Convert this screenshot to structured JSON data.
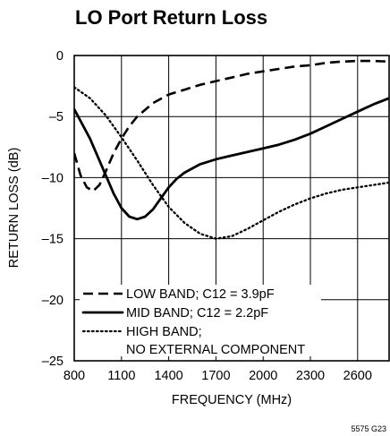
{
  "chart_data": {
    "type": "line",
    "title": "LO Port Return Loss",
    "xlabel": "FREQUENCY (MHz)",
    "ylabel": "RETURN LOSS (dB)",
    "xlim": [
      800,
      2800
    ],
    "ylim": [
      -25,
      0
    ],
    "x_ticks": [
      800,
      1100,
      1400,
      1700,
      2000,
      2300,
      2600
    ],
    "x_tick_labels": [
      "800",
      "1100",
      "1400",
      "1700",
      "2000",
      "2300",
      "2600"
    ],
    "y_ticks": [
      0,
      -5,
      -10,
      -15,
      -20,
      -25
    ],
    "y_tick_labels": [
      "0",
      "–5",
      "–10",
      "–15",
      "–20",
      "–25"
    ],
    "grid": true,
    "legend_position": "bottom-left",
    "series": [
      {
        "name": "LOW BAND; C12 = 3.9pF",
        "style": "dashed",
        "points": [
          [
            800,
            -8.0
          ],
          [
            840,
            -9.8
          ],
          [
            880,
            -10.8
          ],
          [
            920,
            -11.1
          ],
          [
            960,
            -10.6
          ],
          [
            1000,
            -9.5
          ],
          [
            1050,
            -8.0
          ],
          [
            1100,
            -6.8
          ],
          [
            1150,
            -5.8
          ],
          [
            1200,
            -5.0
          ],
          [
            1300,
            -3.9
          ],
          [
            1400,
            -3.2
          ],
          [
            1500,
            -2.8
          ],
          [
            1600,
            -2.4
          ],
          [
            1700,
            -2.1
          ],
          [
            1800,
            -1.8
          ],
          [
            1900,
            -1.5
          ],
          [
            2000,
            -1.3
          ],
          [
            2100,
            -1.1
          ],
          [
            2200,
            -0.9
          ],
          [
            2300,
            -0.8
          ],
          [
            2400,
            -0.6
          ],
          [
            2500,
            -0.5
          ],
          [
            2600,
            -0.45
          ],
          [
            2700,
            -0.45
          ],
          [
            2800,
            -0.5
          ]
        ]
      },
      {
        "name": "MID BAND; C12 = 2.2pF",
        "style": "solid",
        "points": [
          [
            800,
            -4.4
          ],
          [
            850,
            -5.6
          ],
          [
            900,
            -6.8
          ],
          [
            950,
            -8.3
          ],
          [
            1000,
            -9.8
          ],
          [
            1050,
            -11.3
          ],
          [
            1100,
            -12.5
          ],
          [
            1150,
            -13.2
          ],
          [
            1200,
            -13.4
          ],
          [
            1250,
            -13.2
          ],
          [
            1300,
            -12.6
          ],
          [
            1350,
            -11.7
          ],
          [
            1400,
            -10.8
          ],
          [
            1450,
            -10.1
          ],
          [
            1500,
            -9.6
          ],
          [
            1600,
            -8.9
          ],
          [
            1700,
            -8.5
          ],
          [
            1800,
            -8.2
          ],
          [
            1900,
            -7.9
          ],
          [
            2000,
            -7.6
          ],
          [
            2100,
            -7.3
          ],
          [
            2200,
            -6.9
          ],
          [
            2300,
            -6.4
          ],
          [
            2400,
            -5.8
          ],
          [
            2500,
            -5.2
          ],
          [
            2600,
            -4.6
          ],
          [
            2700,
            -4.0
          ],
          [
            2800,
            -3.5
          ]
        ]
      },
      {
        "name": "HIGH BAND; NO EXTERNAL COMPONENT",
        "legend_lines": [
          "HIGH BAND;",
          "NO EXTERNAL COMPONENT"
        ],
        "style": "dotted",
        "points": [
          [
            800,
            -2.6
          ],
          [
            900,
            -3.5
          ],
          [
            1000,
            -4.9
          ],
          [
            1100,
            -6.7
          ],
          [
            1200,
            -8.6
          ],
          [
            1300,
            -10.6
          ],
          [
            1400,
            -12.4
          ],
          [
            1500,
            -13.7
          ],
          [
            1600,
            -14.6
          ],
          [
            1700,
            -15.0
          ],
          [
            1800,
            -14.8
          ],
          [
            1900,
            -14.2
          ],
          [
            2000,
            -13.5
          ],
          [
            2100,
            -12.8
          ],
          [
            2200,
            -12.2
          ],
          [
            2300,
            -11.7
          ],
          [
            2400,
            -11.3
          ],
          [
            2500,
            -11.0
          ],
          [
            2600,
            -10.8
          ],
          [
            2700,
            -10.6
          ],
          [
            2800,
            -10.4
          ]
        ]
      }
    ],
    "figure_code": "5575 G23"
  }
}
